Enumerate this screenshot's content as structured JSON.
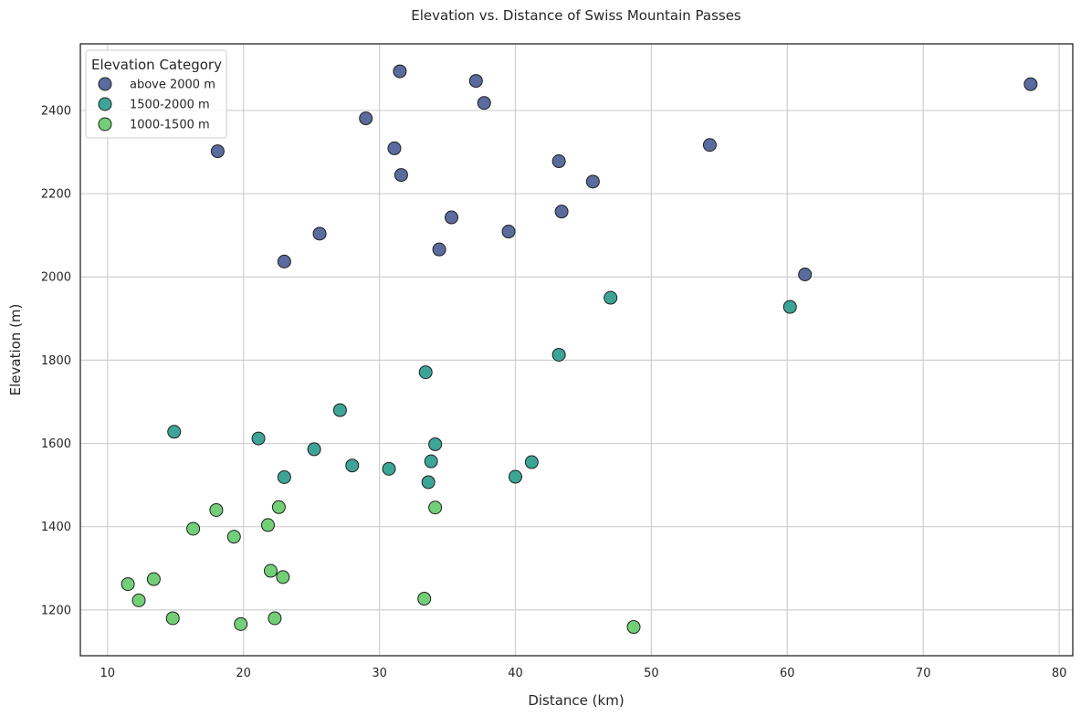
{
  "chart_data": {
    "type": "scatter",
    "title": "Elevation vs. Distance of Swiss Mountain Passes",
    "xlabel": "Distance (km)",
    "ylabel": "Elevation (m)",
    "xlim": [
      8,
      81
    ],
    "ylim": [
      1090,
      2560
    ],
    "xticks": [
      10,
      20,
      30,
      40,
      50,
      60,
      70,
      80
    ],
    "yticks": [
      1200,
      1400,
      1600,
      1800,
      2000,
      2200,
      2400
    ],
    "grid": true,
    "legend": {
      "title": "Elevation Category",
      "placement": "top-left"
    },
    "series": [
      {
        "name": "above 2000 m",
        "color": "#5a6b9e",
        "points": [
          [
            18.1,
            2302
          ],
          [
            23.0,
            2037
          ],
          [
            25.6,
            2104
          ],
          [
            29.0,
            2381
          ],
          [
            31.1,
            2309
          ],
          [
            31.5,
            2494
          ],
          [
            31.6,
            2245
          ],
          [
            34.4,
            2066
          ],
          [
            35.3,
            2143
          ],
          [
            37.1,
            2471
          ],
          [
            37.7,
            2418
          ],
          [
            39.5,
            2109
          ],
          [
            43.2,
            2278
          ],
          [
            43.4,
            2157
          ],
          [
            45.7,
            2229
          ],
          [
            54.3,
            2317
          ],
          [
            61.3,
            2006
          ],
          [
            77.9,
            2463
          ]
        ]
      },
      {
        "name": "1500-2000 m",
        "color": "#3da597",
        "points": [
          [
            14.9,
            1628
          ],
          [
            21.1,
            1612
          ],
          [
            23.0,
            1519
          ],
          [
            25.2,
            1586
          ],
          [
            27.1,
            1680
          ],
          [
            28.0,
            1547
          ],
          [
            30.7,
            1539
          ],
          [
            33.4,
            1771
          ],
          [
            33.6,
            1507
          ],
          [
            33.8,
            1557
          ],
          [
            34.1,
            1598
          ],
          [
            40.0,
            1520
          ],
          [
            41.2,
            1555
          ],
          [
            43.2,
            1813
          ],
          [
            47.0,
            1950
          ],
          [
            60.2,
            1928
          ]
        ]
      },
      {
        "name": "1000-1500 m",
        "color": "#72cf77",
        "points": [
          [
            11.5,
            1262
          ],
          [
            12.3,
            1223
          ],
          [
            13.4,
            1274
          ],
          [
            14.8,
            1180
          ],
          [
            16.3,
            1395
          ],
          [
            18.0,
            1440
          ],
          [
            19.3,
            1376
          ],
          [
            19.8,
            1166
          ],
          [
            21.8,
            1404
          ],
          [
            22.0,
            1294
          ],
          [
            22.3,
            1180
          ],
          [
            22.6,
            1447
          ],
          [
            22.9,
            1279
          ],
          [
            33.3,
            1227
          ],
          [
            34.1,
            1446
          ],
          [
            48.7,
            1159
          ]
        ]
      }
    ]
  }
}
